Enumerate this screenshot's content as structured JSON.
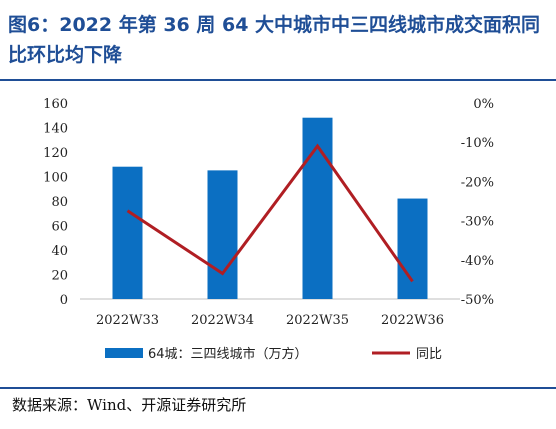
{
  "figure": {
    "title": "图6：2022 年第 36 周 64 大中城市中三四线城市成交面积同比环比均下降",
    "source": "数据来源：Wind、开源证券研究所"
  },
  "colors": {
    "title": "#1f4e96",
    "bar": "#0b6fc2",
    "line": "#b01e23"
  },
  "chart_data": {
    "type": "bar",
    "categories": [
      "2022W33",
      "2022W34",
      "2022W35",
      "2022W36"
    ],
    "series": [
      {
        "name": "64城：三四线城市（万方）",
        "type": "bar",
        "axis": "left",
        "values": [
          108,
          105,
          148,
          82
        ]
      },
      {
        "name": "同比",
        "type": "line",
        "axis": "right",
        "values": [
          -27.5,
          -43.5,
          -11,
          -45.5
        ]
      }
    ],
    "y_left": {
      "ylim": [
        0,
        160
      ],
      "ticks": [
        "160",
        "140",
        "120",
        "100",
        "80",
        "60",
        "40",
        "20",
        "0"
      ]
    },
    "y_right": {
      "ylim": [
        -50,
        0
      ],
      "ticks": [
        "0%",
        "-10%",
        "-20%",
        "-30%",
        "-40%",
        "-50%"
      ]
    },
    "grid": false,
    "legend": "bottom"
  }
}
